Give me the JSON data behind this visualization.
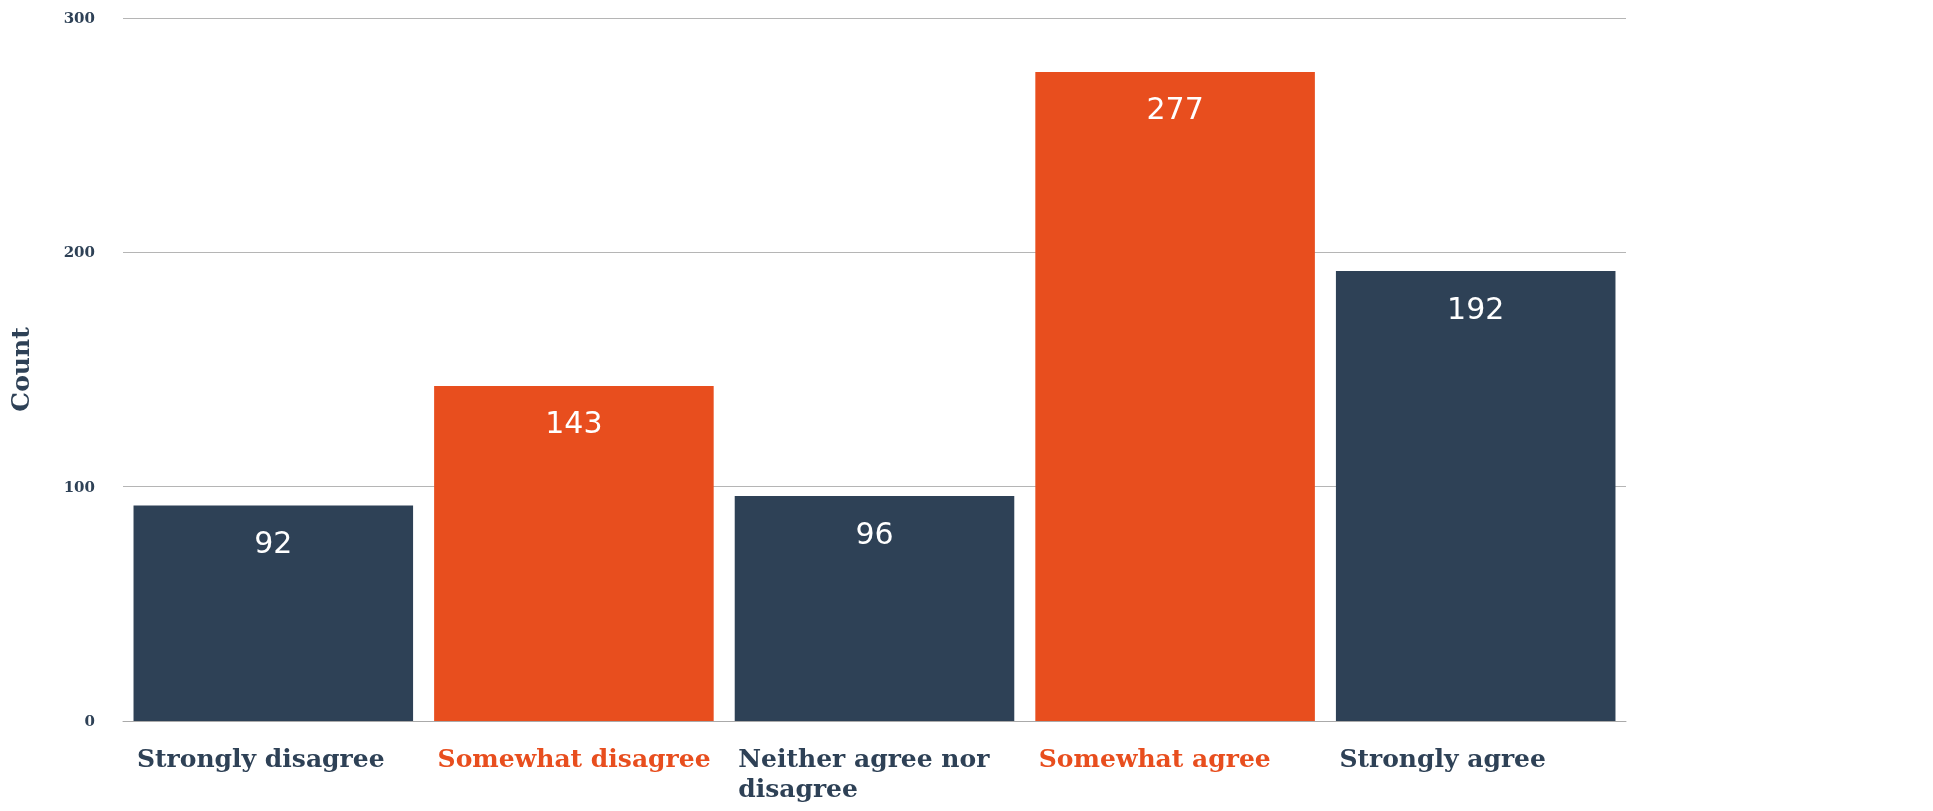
{
  "chart_data": {
    "type": "bar",
    "ylabel": "Count",
    "categories": [
      "Strongly disagree",
      "Somewhat disagree",
      "Neither agree nor disagree",
      "Somewhat agree",
      "Strongly agree"
    ],
    "values": [
      92,
      143,
      96,
      277,
      192
    ],
    "colors": [
      "#2e4156",
      "#e84e1e",
      "#2e4156",
      "#e84e1e",
      "#2e4156"
    ],
    "ylim": [
      0,
      300
    ],
    "yticks": [
      0,
      100,
      200,
      300
    ],
    "grid": "y",
    "data_labels": true
  }
}
